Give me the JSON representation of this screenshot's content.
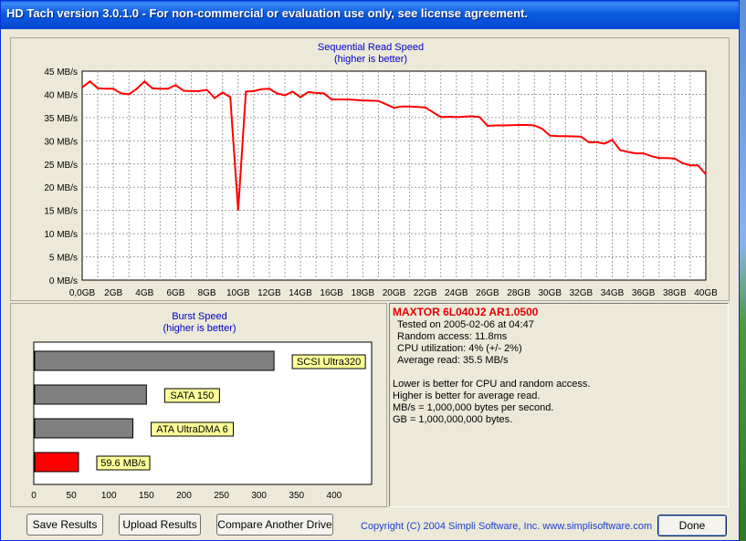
{
  "window": {
    "title": "HD Tach version 3.0.1.0  - For non-commercial or evaluation use only, see license agreement."
  },
  "sequential_chart": {
    "title": "Sequential Read Speed",
    "subtitle": "(higher is better)"
  },
  "burst_chart": {
    "title": "Burst Speed",
    "subtitle": "(higher is better)"
  },
  "chart_data": [
    {
      "type": "line",
      "title": "Sequential Read Speed",
      "subtitle": "(higher is better)",
      "xlabel": "",
      "ylabel": "",
      "x_tick_labels": [
        "0,0GB",
        "2GB",
        "4GB",
        "6GB",
        "8GB",
        "10GB",
        "12GB",
        "14GB",
        "16GB",
        "18GB",
        "20GB",
        "22GB",
        "24GB",
        "26GB",
        "28GB",
        "30GB",
        "32GB",
        "34GB",
        "36GB",
        "38GB",
        "40GB"
      ],
      "y_tick_labels": [
        "0 MB/s",
        "5 MB/s",
        "10 MB/s",
        "15 MB/s",
        "20 MB/s",
        "25 MB/s",
        "30 MB/s",
        "35 MB/s",
        "40 MB/s",
        "45 MB/s"
      ],
      "xlim": [
        0,
        40
      ],
      "ylim": [
        0,
        45
      ],
      "grid": true,
      "line_color": "#ff0000",
      "series": [
        {
          "x": [
            0,
            0.5,
            1,
            1.5,
            2,
            2.5,
            3,
            3.5,
            4,
            4.5,
            5,
            5.5,
            6,
            6.5,
            7,
            7.5,
            8,
            8.5,
            9,
            9.5,
            10,
            10.5,
            11,
            11.5,
            12,
            12.5,
            13,
            13.5,
            14,
            14.5,
            15,
            15.5,
            16,
            17,
            18,
            19,
            20,
            20.5,
            21,
            22,
            23,
            23.5,
            24,
            25,
            25.5,
            26,
            26.5,
            27,
            28,
            28.5,
            29,
            29.5,
            30,
            30.5,
            31,
            32,
            32.5,
            33,
            33.5,
            34,
            34.5,
            35,
            35.5,
            36,
            36.5,
            37,
            37.5,
            38,
            38.5,
            39,
            39.5,
            40
          ],
          "values": [
            41.5,
            42.8,
            41.3,
            41.2,
            41.2,
            40.2,
            40,
            41.2,
            42.8,
            41.3,
            41.2,
            41.2,
            42,
            40.8,
            40.7,
            40.7,
            41,
            39.2,
            40.4,
            39.4,
            15,
            40.6,
            40.7,
            41.1,
            41.2,
            40.2,
            39.8,
            40.6,
            39.4,
            40.5,
            40.3,
            40.2,
            38.9,
            38.9,
            38.7,
            38.6,
            37.1,
            37.4,
            37.4,
            37.2,
            35.1,
            35.2,
            35.1,
            35.3,
            35.1,
            33.2,
            33.3,
            33.3,
            33.4,
            33.4,
            33.3,
            32.6,
            31.1,
            31,
            31,
            30.9,
            29.7,
            29.7,
            29.4,
            30.2,
            28,
            27.6,
            27.3,
            27.3,
            26.7,
            26.3,
            26.3,
            26.2,
            25.2,
            24.7,
            24.7,
            22.8
          ]
        }
      ]
    },
    {
      "type": "bar",
      "orientation": "horizontal",
      "title": "Burst Speed",
      "subtitle": "(higher is better)",
      "xlim": [
        0,
        450
      ],
      "x_tick_labels": [
        "0",
        "50",
        "100",
        "150",
        "200",
        "250",
        "300",
        "350",
        "400"
      ],
      "categories": [
        "SCSI Ultra320",
        "SATA 150",
        "ATA UltraDMA 6",
        "59.6 MB/s"
      ],
      "values": [
        320,
        150,
        132,
        59.6
      ],
      "colors": [
        "#808080",
        "#808080",
        "#808080",
        "#ff0000"
      ],
      "label_bg": "#ffff99"
    }
  ],
  "info": {
    "drive_name": "MAXTOR 6L040J2 AR1.0500",
    "tested_on": "Tested on 2005-02-06 at 04:47",
    "random_access": "Random access: 11.8ms",
    "cpu_utilization": "CPU utilization: 4% (+/- 2%)",
    "average_read": "Average read: 35.5 MB/s",
    "note_1": "Lower is better for CPU and random access.",
    "note_2": "Higher is better for average read.",
    "note_3": "MB/s = 1,000,000 bytes per second.",
    "note_4": "GB = 1,000,000,000 bytes."
  },
  "buttons": {
    "save": "Save Results",
    "upload": "Upload Results",
    "compare": "Compare Another Drive",
    "done": "Done"
  },
  "footer": {
    "copyright": "Copyright (C) 2004 Simpli Software, Inc. www.simplisoftware.com"
  }
}
